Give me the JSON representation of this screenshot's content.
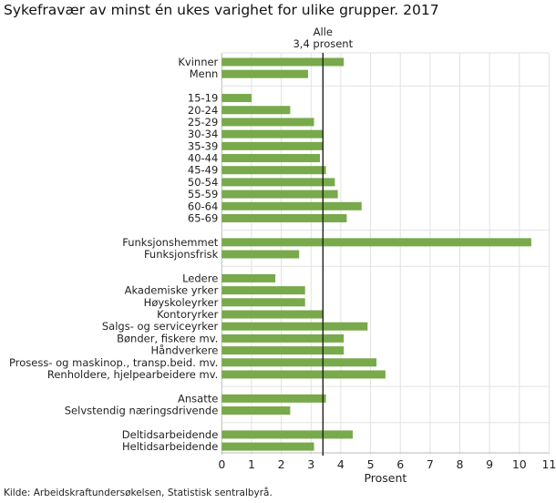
{
  "chart_data": {
    "type": "bar",
    "orientation": "horizontal",
    "title": "Sykefravær av minst én ukes varighet for ulike grupper. 2017",
    "xlabel": "Prosent",
    "ylabel": "",
    "xlim": [
      0,
      11
    ],
    "xticks": [
      "0",
      "1",
      "2",
      "3",
      "4",
      "5",
      "6",
      "7",
      "8",
      "9",
      "10",
      "11"
    ],
    "grid": true,
    "bar_color": "#78a94b",
    "reference_line": {
      "value": 3.4,
      "label_line1": "Alle",
      "label_line2": "3,4 prosent",
      "color": "#222222"
    },
    "groups": [
      {
        "categories": [
          "Kvinner",
          "Menn"
        ],
        "values": [
          4.1,
          2.9
        ]
      },
      {
        "categories": [
          "15-19",
          "20-24",
          "25-29",
          "30-34",
          "35-39",
          "40-44",
          "45-49",
          "50-54",
          "55-59",
          "60-64",
          "65-69"
        ],
        "values": [
          1.0,
          2.3,
          3.1,
          3.4,
          3.4,
          3.3,
          3.5,
          3.8,
          3.9,
          4.7,
          4.2
        ]
      },
      {
        "categories": [
          "Funksjonshemmet",
          "Funksjonsfrisk"
        ],
        "values": [
          10.4,
          2.6
        ]
      },
      {
        "categories": [
          "Ledere",
          "Akademiske yrker",
          "Høyskoleyrker",
          "Kontoryrker",
          "Salgs- og serviceyrker",
          "Bønder, fiskere mv.",
          "Håndverkere",
          "Prosess- og maskinop., transp.beid. mv.",
          "Renholdere, hjelpearbeidere mv."
        ],
        "values": [
          1.8,
          2.8,
          2.8,
          3.4,
          4.9,
          4.1,
          4.1,
          5.2,
          5.5
        ]
      },
      {
        "categories": [
          "Ansatte",
          "Selvstendig næringsdrivende"
        ],
        "values": [
          3.5,
          2.3
        ]
      },
      {
        "categories": [
          "Deltidsarbeidende",
          "Heltidsarbeidende"
        ],
        "values": [
          4.4,
          3.1
        ]
      }
    ]
  },
  "source": "Kilde: Arbeidskraftundersøkelsen, Statistisk sentralbyrå."
}
